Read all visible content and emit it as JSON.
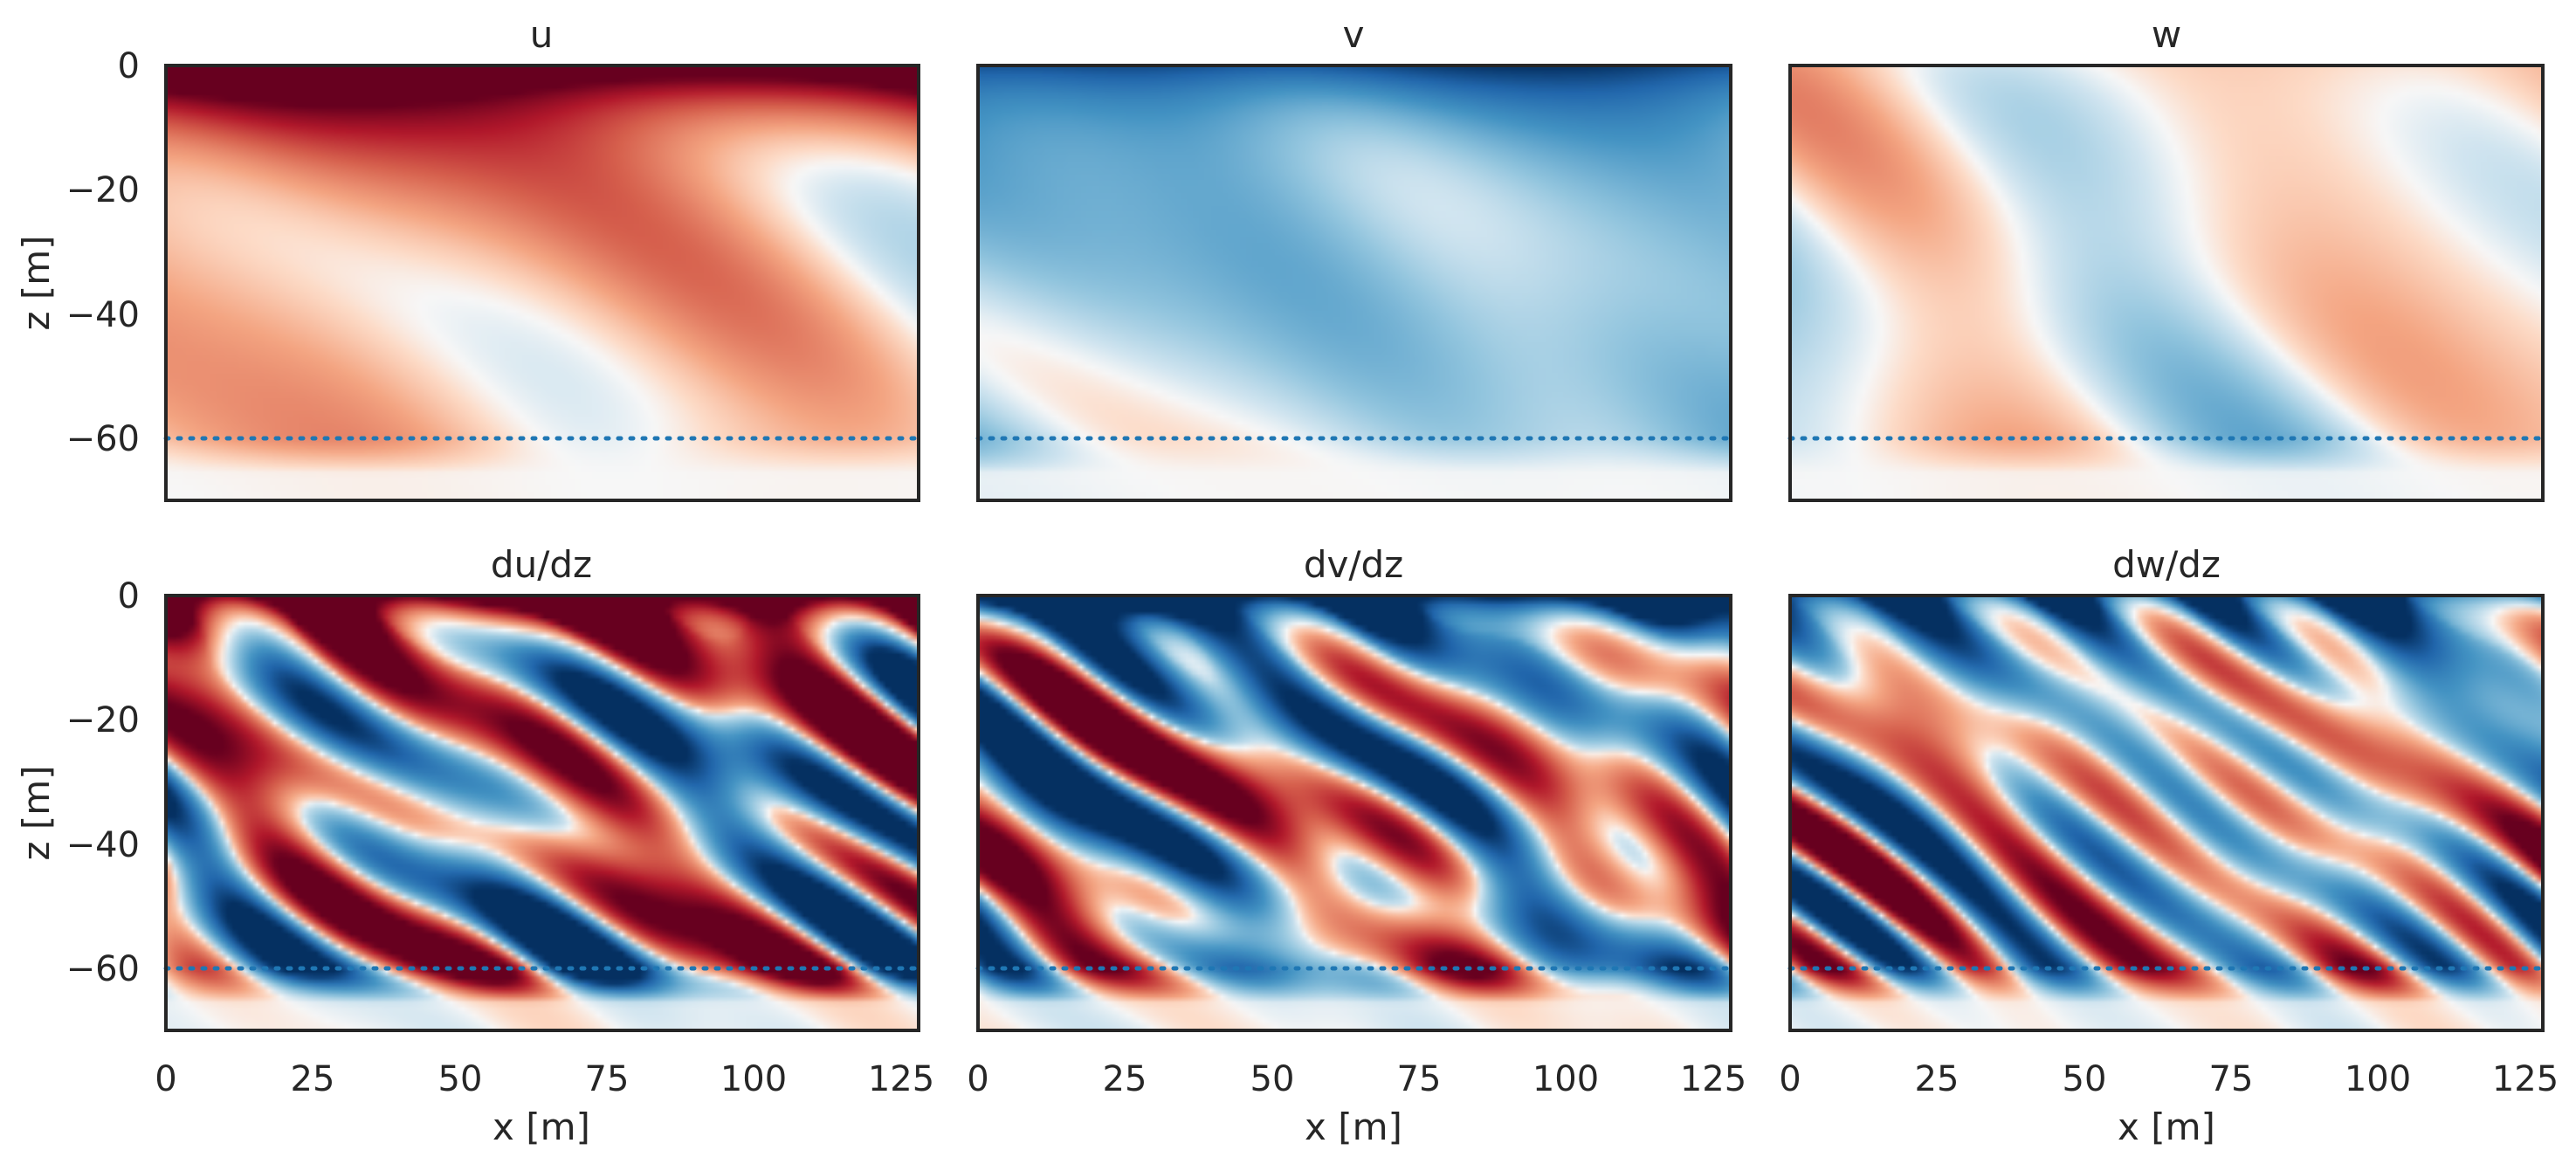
{
  "chart_data": {
    "type": "heatmap",
    "figure": "2x3 grid of vertical cross-section fields",
    "colormap": "RdBu_r (diverging, red positive, blue negative)",
    "colors": {
      "positive": "#67001f",
      "neutral": "#f7f7f7",
      "negative": "#053061",
      "reference_line": "#1f77b4",
      "axes": "#262626"
    },
    "x_axis": {
      "label": "x [m]",
      "range": [
        0,
        128
      ],
      "ticks": [
        0,
        25,
        50,
        75,
        100,
        125
      ],
      "tick_labels": [
        "0",
        "25",
        "50",
        "75",
        "100",
        "125"
      ]
    },
    "y_axis": {
      "label": "z [m]",
      "range": [
        -70,
        0
      ],
      "ticks": [
        0,
        -20,
        -40,
        -60
      ],
      "tick_labels": [
        "0",
        "−20",
        "−40",
        "−60"
      ]
    },
    "reference_line": {
      "z": -60,
      "style": "dotted"
    },
    "panels": [
      {
        "title": "u",
        "field": "u",
        "character": "smooth",
        "surface": 0.9,
        "bias": 0.12,
        "seed": 11
      },
      {
        "title": "v",
        "field": "v",
        "character": "smooth",
        "surface": -0.5,
        "bias": -0.18,
        "seed": 23
      },
      {
        "title": "w",
        "field": "w",
        "character": "smooth",
        "surface": 0.05,
        "bias": 0.0,
        "seed": 37
      },
      {
        "title": "du/dz",
        "field": "du/dz",
        "character": "streaky",
        "surface": 1.0,
        "bias": 0.0,
        "seed": 53
      },
      {
        "title": "dv/dz",
        "field": "dv/dz",
        "character": "streaky",
        "surface": -0.9,
        "bias": 0.0,
        "seed": 71
      },
      {
        "title": "dw/dz",
        "field": "dw/dz",
        "character": "streaky",
        "surface": -0.6,
        "bias": 0.0,
        "seed": 89
      }
    ]
  }
}
